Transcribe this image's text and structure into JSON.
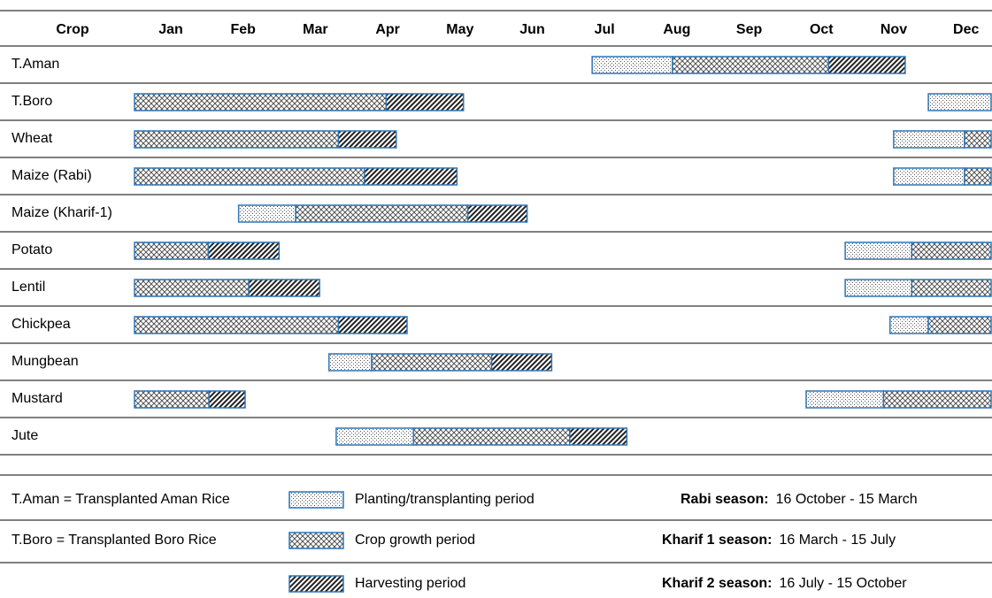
{
  "header": {
    "crop": "Crop",
    "months": [
      "Jan",
      "Feb",
      "Mar",
      "Apr",
      "May",
      "Jun",
      "Jul",
      "Aug",
      "Sep",
      "Oct",
      "Nov",
      "Dec"
    ]
  },
  "rows": [
    {
      "crop": "T.Aman",
      "planting": [
        [
          6.33,
          7.44
        ]
      ],
      "growth": [
        [
          7.44,
          9.6
        ]
      ],
      "harvest": [
        [
          9.6,
          10.66
        ]
      ]
    },
    {
      "crop": "T.Boro",
      "planting": [
        [
          10.98,
          12
        ]
      ],
      "growth": [
        [
          0,
          3.48
        ]
      ],
      "harvest": [
        [
          3.48,
          4.55
        ]
      ]
    },
    {
      "crop": "Wheat",
      "planting": [
        [
          10.5,
          11.48
        ]
      ],
      "growth": [
        [
          0,
          2.82
        ],
        [
          11.48,
          12
        ]
      ],
      "harvest": [
        [
          2.82,
          3.62
        ]
      ]
    },
    {
      "crop": "Maize (Rabi)",
      "planting": [
        [
          10.5,
          11.48
        ]
      ],
      "growth": [
        [
          0,
          3.18
        ],
        [
          11.48,
          12
        ]
      ],
      "harvest": [
        [
          3.18,
          4.46
        ]
      ]
    },
    {
      "crop": "Maize (Kharif-1)",
      "planting": [
        [
          1.44,
          2.23
        ]
      ],
      "growth": [
        [
          2.23,
          4.61
        ]
      ],
      "harvest": [
        [
          4.61,
          5.43
        ]
      ]
    },
    {
      "crop": "Potato",
      "planting": [
        [
          9.83,
          10.75
        ]
      ],
      "growth": [
        [
          0,
          1.02
        ],
        [
          10.75,
          12
        ]
      ],
      "harvest": [
        [
          1.02,
          2.0
        ]
      ]
    },
    {
      "crop": "Lentil",
      "planting": [
        [
          9.83,
          10.75
        ]
      ],
      "growth": [
        [
          0,
          1.58
        ],
        [
          10.75,
          12
        ]
      ],
      "harvest": [
        [
          1.58,
          2.56
        ]
      ]
    },
    {
      "crop": "Chickpea",
      "planting": [
        [
          10.45,
          10.98
        ]
      ],
      "growth": [
        [
          0,
          2.82
        ],
        [
          10.98,
          12
        ]
      ],
      "harvest": [
        [
          2.82,
          3.77
        ]
      ]
    },
    {
      "crop": "Mungbean",
      "planting": [
        [
          2.69,
          3.28
        ]
      ],
      "growth": [
        [
          3.28,
          4.94
        ]
      ],
      "harvest": [
        [
          4.94,
          5.77
        ]
      ]
    },
    {
      "crop": "Mustard",
      "planting": [
        [
          9.29,
          10.36
        ]
      ],
      "growth": [
        [
          0,
          1.03
        ],
        [
          10.36,
          12
        ]
      ],
      "harvest": [
        [
          1.03,
          1.53
        ]
      ]
    },
    {
      "crop": "Jute",
      "planting": [
        [
          2.79,
          3.86
        ]
      ],
      "growth": [
        [
          3.86,
          6.02
        ]
      ],
      "harvest": [
        [
          6.02,
          6.81
        ]
      ]
    }
  ],
  "legend": {
    "abbreviations": [
      "T.Aman = Transplanted Aman Rice",
      "T.Boro = Transplanted Boro Rice"
    ],
    "periods": {
      "planting": "Planting/transplanting period",
      "growth": "Crop growth period",
      "harvest": "Harvesting period"
    },
    "seasons": [
      {
        "name": "Rabi season:",
        "dates": "16 October - 15 March"
      },
      {
        "name": "Kharif 1 season:",
        "dates": "16 March - 15 July"
      },
      {
        "name": "Kharif 2 season:",
        "dates": "16 July - 15 October"
      }
    ]
  }
}
